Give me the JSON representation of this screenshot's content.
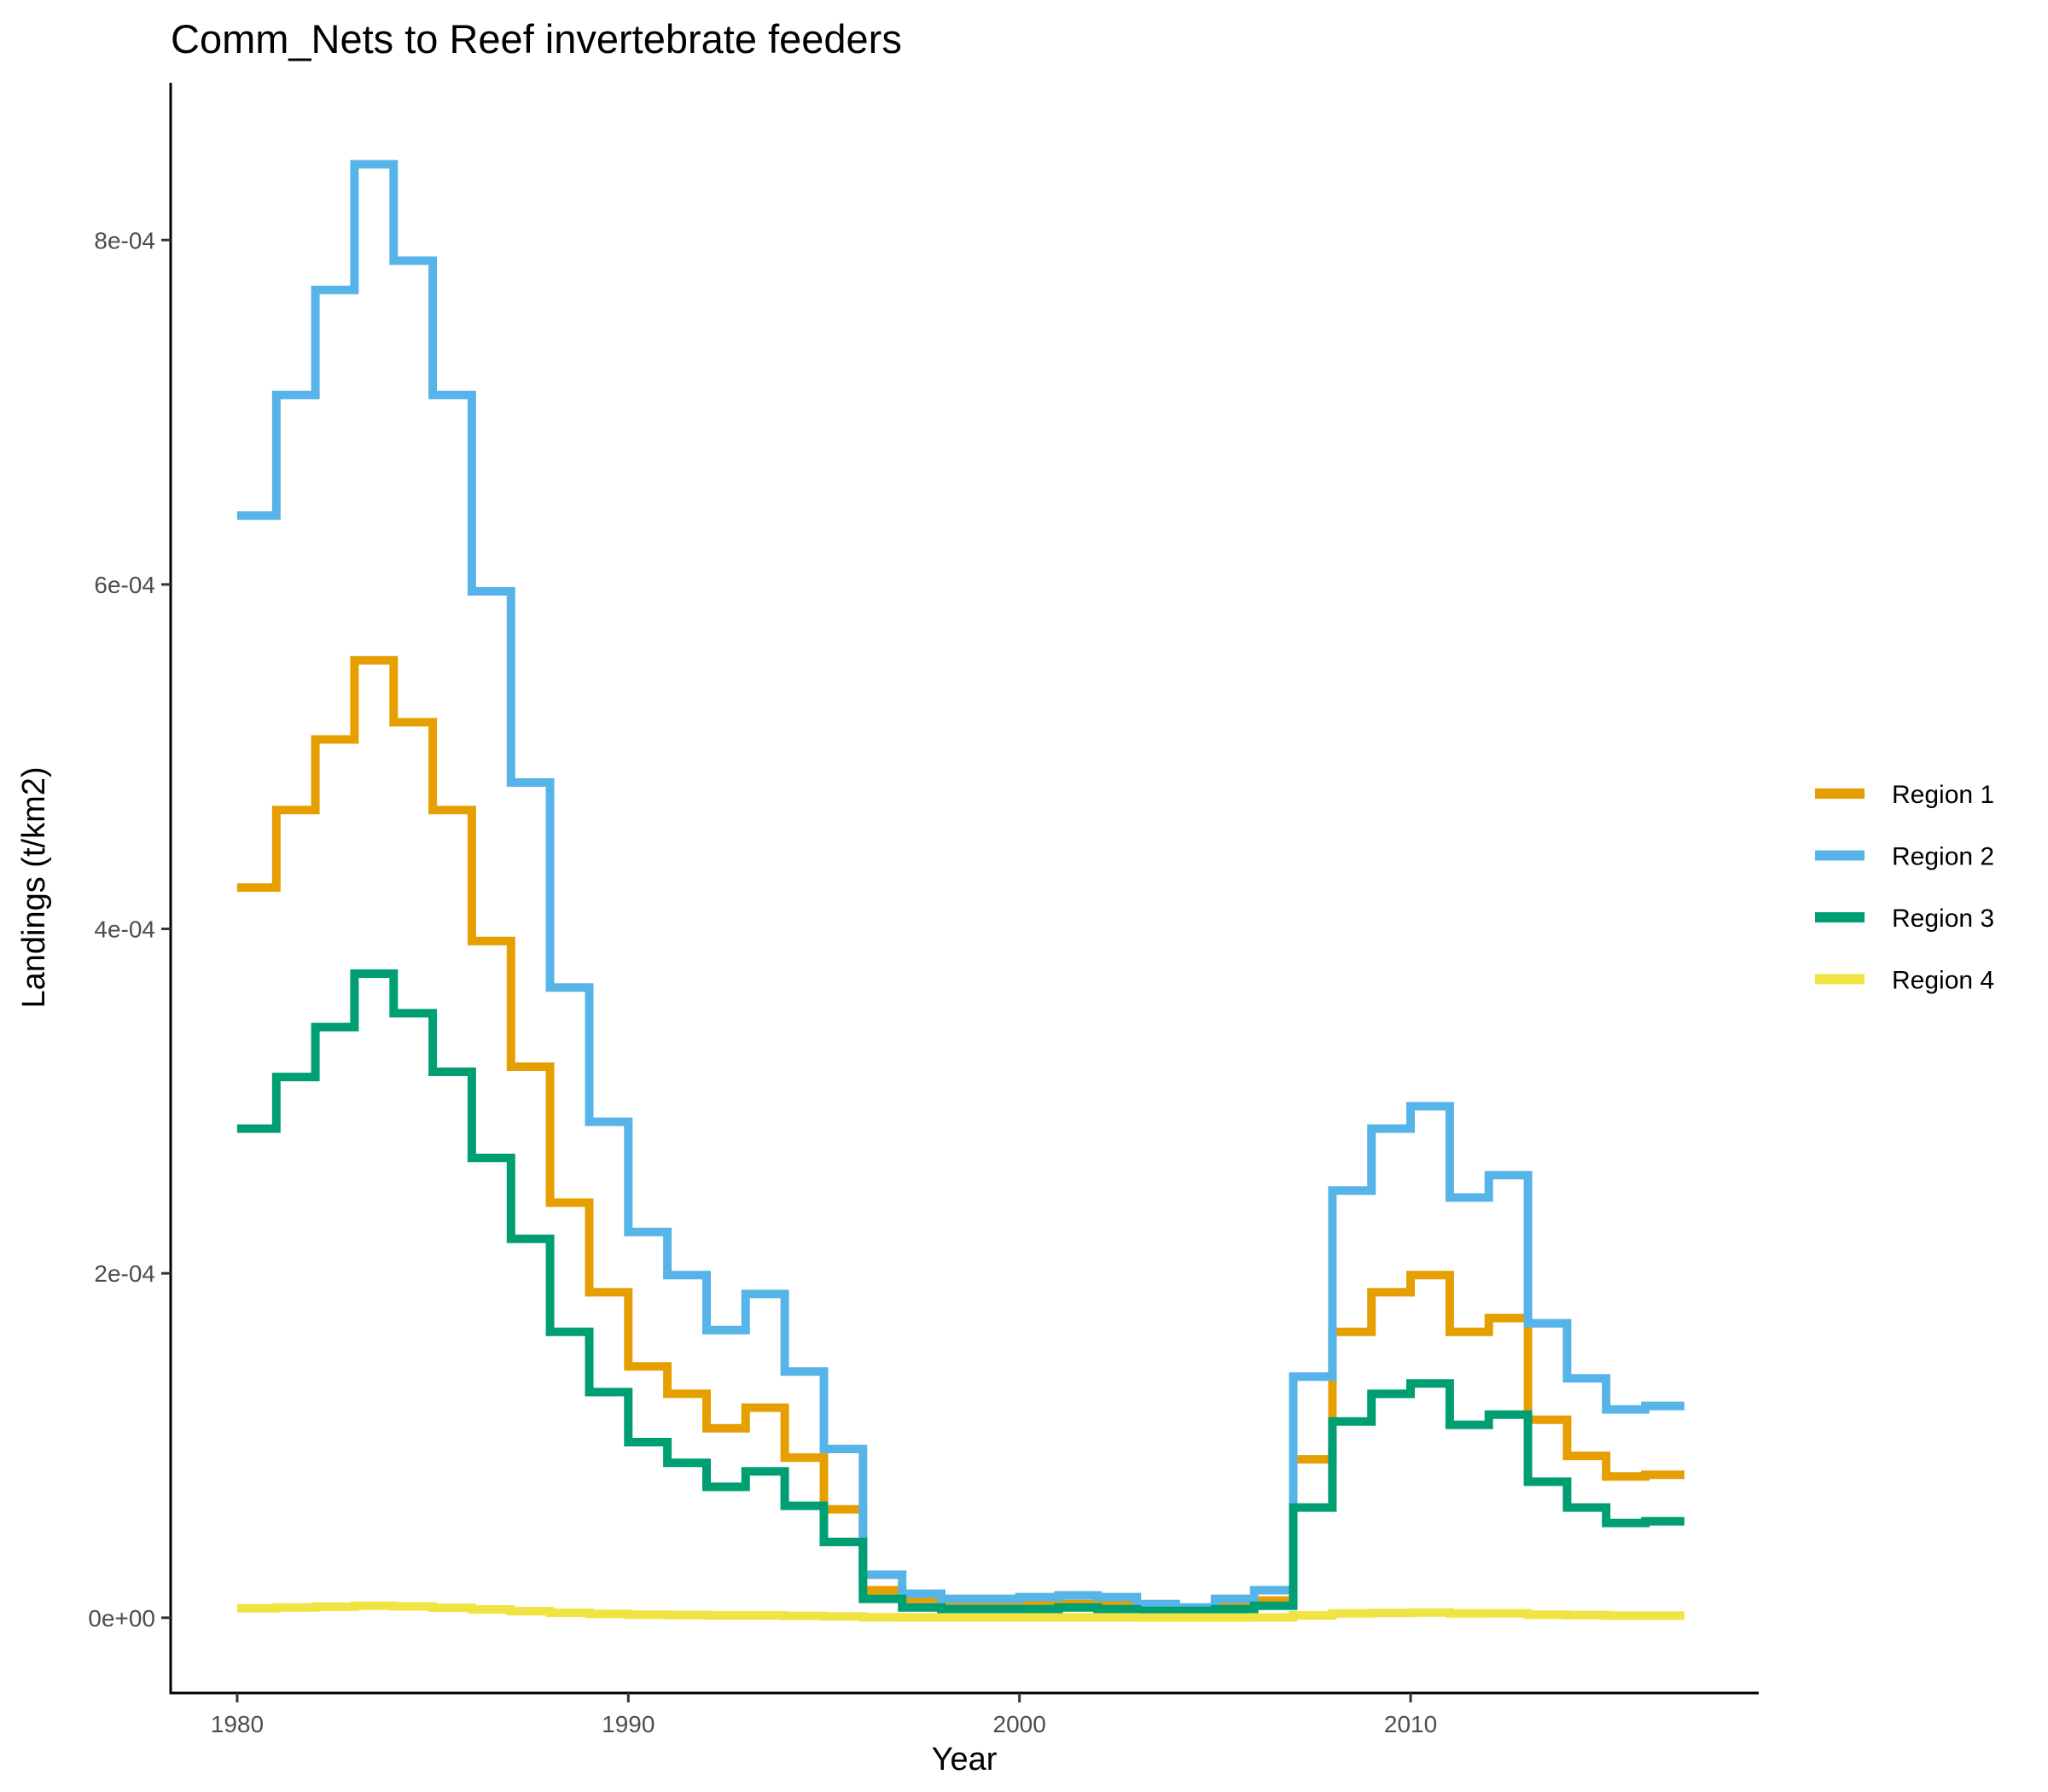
{
  "chart_data": {
    "type": "line",
    "title": "Comm_Nets to Reef invertebrate feeders",
    "xlabel": "Year",
    "ylabel": "Landings (t/km2)",
    "xlim": [
      1978.3,
      2018.9
    ],
    "ylim": [
      -4.37e-05,
      0.0008913
    ],
    "x_ticks": [
      1980,
      1990,
      2000,
      2010
    ],
    "y_ticks": [
      {
        "value": 0,
        "label": "0e+00"
      },
      {
        "value": 0.0002,
        "label": "2e-04"
      },
      {
        "value": 0.0004,
        "label": "4e-04"
      },
      {
        "value": 0.0006,
        "label": "6e-04"
      },
      {
        "value": 0.0008,
        "label": "8e-04"
      }
    ],
    "grid": false,
    "legend_position": "right",
    "x": [
      1980,
      1981,
      1982,
      1983,
      1984,
      1985,
      1986,
      1987,
      1988,
      1989,
      1990,
      1991,
      1992,
      1993,
      1994,
      1995,
      1996,
      1997,
      1998,
      1999,
      2000,
      2001,
      2002,
      2003,
      2004,
      2005,
      2006,
      2007,
      2008,
      2009,
      2010,
      2011,
      2012,
      2013,
      2014,
      2015,
      2016
    ],
    "series": [
      {
        "name": "Region 1",
        "color": "#E69F00",
        "values": [
          0.000424,
          0.000469,
          0.00051,
          0.000556,
          0.00052,
          0.000469,
          0.000393,
          0.00032,
          0.000241,
          0.000189,
          0.000146,
          0.00013,
          0.00011,
          0.000122,
          9.3e-05,
          6.3e-05,
          1.6e-05,
          1.1e-05,
          8e-06,
          8e-06,
          8e-06,
          8e-06,
          8e-06,
          6e-06,
          5e-06,
          7e-06,
          1e-05,
          9.2e-05,
          0.000166,
          0.000189,
          0.000199,
          0.000166,
          0.000174,
          0.000115,
          9.4e-05,
          8.2e-05,
          8.3e-05
        ]
      },
      {
        "name": "Region 2",
        "color": "#56B4E9",
        "values": [
          0.00064,
          0.00071,
          0.000771,
          0.000844,
          0.000788,
          0.00071,
          0.000596,
          0.000485,
          0.000366,
          0.000288,
          0.000224,
          0.000199,
          0.000167,
          0.000188,
          0.000143,
          9.8e-05,
          2.5e-05,
          1.4e-05,
          1.1e-05,
          1.1e-05,
          1.2e-05,
          1.3e-05,
          1.2e-05,
          8e-06,
          6e-06,
          1.1e-05,
          1.6e-05,
          0.00014,
          0.000248,
          0.000284,
          0.000297,
          0.000244,
          0.000257,
          0.000171,
          0.000139,
          0.000121,
          0.000123
        ]
      },
      {
        "name": "Region 3",
        "color": "#009E73",
        "values": [
          0.000284,
          0.000314,
          0.000343,
          0.000374,
          0.000351,
          0.000317,
          0.000267,
          0.00022,
          0.000166,
          0.000131,
          0.000102,
          9e-05,
          7.6e-05,
          8.5e-05,
          6.5e-05,
          4.4e-05,
          1.1e-05,
          6e-06,
          5e-06,
          5e-06,
          5e-06,
          6e-06,
          5e-06,
          4e-06,
          4e-06,
          5e-06,
          7e-06,
          6.4e-05,
          0.000114,
          0.00013,
          0.000136,
          0.000112,
          0.000118,
          7.9e-05,
          6.4e-05,
          5.5e-05,
          5.6e-05
        ]
      },
      {
        "name": "Region 4",
        "color": "#F0E442",
        "values": [
          5.5e-06,
          6e-06,
          6.4e-06,
          7e-06,
          6.6e-06,
          5.8e-06,
          4.8e-06,
          3.8e-06,
          2.9e-06,
          2.3e-06,
          1.8e-06,
          1.6e-06,
          1.4e-06,
          1.4e-06,
          1.1e-06,
          8e-07,
          3e-07,
          2e-07,
          2e-07,
          2e-07,
          2e-07,
          2e-07,
          2e-07,
          1e-07,
          1e-07,
          1e-07,
          2e-07,
          1.4e-06,
          2.5e-06,
          2.8e-06,
          3e-06,
          2.5e-06,
          2.6e-06,
          1.8e-06,
          1.5e-06,
          1.3e-06,
          1.3e-06
        ]
      }
    ]
  }
}
